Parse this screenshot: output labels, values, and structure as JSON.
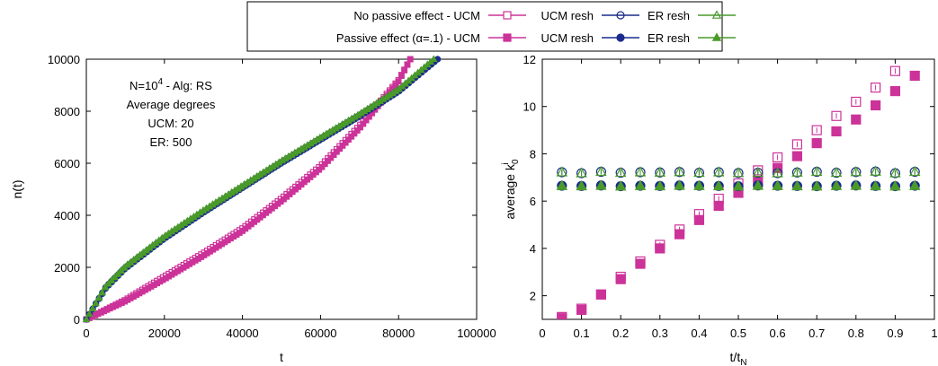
{
  "colors": {
    "magenta": "#cc3399",
    "navy": "#1a2b8c",
    "green": "#4a9a2a",
    "axis": "#000000"
  },
  "legend": [
    {
      "label": "No passive effect - UCM",
      "color": "#cc3399",
      "marker": "open-square"
    },
    {
      "label": "UCM resh",
      "color": "#1a2b8c",
      "marker": "open-circle"
    },
    {
      "label": "ER resh",
      "color": "#4a9a2a",
      "marker": "open-triangle"
    },
    {
      "label": "Passive effect (α=.1) - UCM",
      "color": "#cc3399",
      "marker": "filled-square"
    },
    {
      "label": "UCM resh",
      "color": "#1a2b8c",
      "marker": "filled-circle"
    },
    {
      "label": "ER resh",
      "color": "#4a9a2a",
      "marker": "filled-triangle"
    }
  ],
  "chart_data": [
    {
      "type": "scatter",
      "xlabel": "t",
      "ylabel": "n(t)",
      "xlim": [
        0,
        100000
      ],
      "ylim": [
        0,
        10000
      ],
      "xticks": [
        "0",
        "20000",
        "40000",
        "60000",
        "80000",
        "100000"
      ],
      "yticks": [
        "0",
        "2000",
        "4000",
        "6000",
        "8000",
        "10000"
      ],
      "grid": false,
      "annotation": [
        "N=10^4 - Alg: RS",
        "Average degrees",
        "UCM: 20",
        "ER: 500"
      ],
      "series": [
        {
          "name": "No passive effect - UCM",
          "color": "#cc3399",
          "marker": "open-square",
          "x": [
            0,
            10000,
            20000,
            30000,
            40000,
            50000,
            60000,
            70000,
            80000,
            83000
          ],
          "y": [
            0,
            750,
            1650,
            2550,
            3500,
            4650,
            5900,
            7450,
            9200,
            10000
          ]
        },
        {
          "name": "Passive effect (α=.1) - UCM",
          "color": "#cc3399",
          "marker": "filled-square",
          "x": [
            0,
            10000,
            20000,
            30000,
            40000,
            50000,
            60000,
            70000,
            80000,
            83000
          ],
          "y": [
            0,
            700,
            1550,
            2450,
            3400,
            4550,
            5800,
            7350,
            9150,
            10000
          ]
        },
        {
          "name": "UCM resh",
          "color": "#1a2b8c",
          "marker": "open-circle",
          "x": [
            0,
            5000,
            10000,
            20000,
            30000,
            40000,
            50000,
            60000,
            70000,
            80000,
            90000
          ],
          "y": [
            0,
            1250,
            2000,
            3150,
            4150,
            5100,
            6050,
            6950,
            7850,
            8800,
            10000
          ]
        },
        {
          "name": "UCM resh",
          "color": "#1a2b8c",
          "marker": "filled-circle",
          "x": [
            0,
            5000,
            10000,
            20000,
            30000,
            40000,
            50000,
            60000,
            70000,
            80000,
            90000
          ],
          "y": [
            0,
            1200,
            1950,
            3100,
            4100,
            5050,
            6000,
            6900,
            7800,
            8750,
            10000
          ]
        },
        {
          "name": "ER resh",
          "color": "#4a9a2a",
          "marker": "open-triangle",
          "x": [
            0,
            5000,
            10000,
            20000,
            30000,
            40000,
            50000,
            60000,
            70000,
            80000,
            89000
          ],
          "y": [
            0,
            1280,
            2050,
            3200,
            4200,
            5150,
            6100,
            7000,
            7900,
            8850,
            10000
          ]
        },
        {
          "name": "ER resh",
          "color": "#4a9a2a",
          "marker": "filled-triangle",
          "x": [
            0,
            5000,
            10000,
            20000,
            30000,
            40000,
            50000,
            60000,
            70000,
            80000,
            89000
          ],
          "y": [
            0,
            1260,
            2020,
            3180,
            4180,
            5120,
            6080,
            6980,
            7880,
            8830,
            10000
          ]
        }
      ]
    },
    {
      "type": "scatter",
      "xlabel": "t/t_N",
      "ylabel": "average k_0^i",
      "xlim": [
        0,
        1
      ],
      "ylim": [
        1,
        12
      ],
      "xticks": [
        "0",
        "0.1",
        "0.2",
        "0.3",
        "0.4",
        "0.5",
        "0.6",
        "0.7",
        "0.8",
        "0.9",
        "1"
      ],
      "yticks": [
        "2",
        "4",
        "6",
        "8",
        "10",
        "12"
      ],
      "grid": false,
      "x": [
        0.05,
        0.1,
        0.15,
        0.2,
        0.25,
        0.3,
        0.35,
        0.4,
        0.45,
        0.5,
        0.55,
        0.6,
        0.65,
        0.7,
        0.75,
        0.8,
        0.85,
        0.9,
        0.95
      ],
      "series": [
        {
          "name": "No passive effect - UCM",
          "color": "#cc3399",
          "marker": "open-square",
          "values": [
            1.1,
            1.45,
            2.05,
            2.8,
            3.45,
            4.15,
            4.8,
            5.45,
            6.1,
            6.75,
            7.3,
            7.85,
            8.4,
            9.0,
            9.6,
            10.2,
            10.8,
            11.5,
            12.4
          ]
        },
        {
          "name": "Passive effect (α=.1) - UCM",
          "color": "#cc3399",
          "marker": "filled-square",
          "values": [
            1.05,
            1.4,
            2.05,
            2.7,
            3.35,
            4.0,
            4.6,
            5.2,
            5.8,
            6.35,
            6.85,
            7.4,
            7.9,
            8.45,
            8.95,
            9.45,
            10.05,
            10.65,
            11.3
          ]
        },
        {
          "name": "UCM resh",
          "color": "#1a2b8c",
          "marker": "open-circle",
          "values": [
            7.22,
            7.18,
            7.24,
            7.2,
            7.22,
            7.21,
            7.23,
            7.2,
            7.22,
            7.19,
            7.2,
            7.18,
            7.21,
            7.24,
            7.2,
            7.23,
            7.25,
            7.18,
            7.24
          ]
        },
        {
          "name": "UCM resh",
          "color": "#1a2b8c",
          "marker": "filled-circle",
          "values": [
            6.65,
            6.64,
            6.66,
            6.63,
            6.65,
            6.64,
            6.66,
            6.65,
            6.64,
            6.63,
            6.66,
            6.65,
            6.64,
            6.63,
            6.65,
            6.66,
            6.64,
            6.63,
            6.65
          ]
        },
        {
          "name": "ER resh",
          "color": "#4a9a2a",
          "marker": "open-triangle",
          "values": [
            7.22,
            7.18,
            7.24,
            7.2,
            7.22,
            7.21,
            7.23,
            7.2,
            7.22,
            7.19,
            7.2,
            7.18,
            7.21,
            7.24,
            7.2,
            7.23,
            7.25,
            7.18,
            7.24
          ]
        },
        {
          "name": "ER resh",
          "color": "#4a9a2a",
          "marker": "filled-triangle",
          "values": [
            6.64,
            6.63,
            6.65,
            6.62,
            6.64,
            6.63,
            6.65,
            6.64,
            6.63,
            6.62,
            6.65,
            6.64,
            6.63,
            6.62,
            6.64,
            6.65,
            6.63,
            6.62,
            6.64
          ]
        }
      ]
    }
  ]
}
